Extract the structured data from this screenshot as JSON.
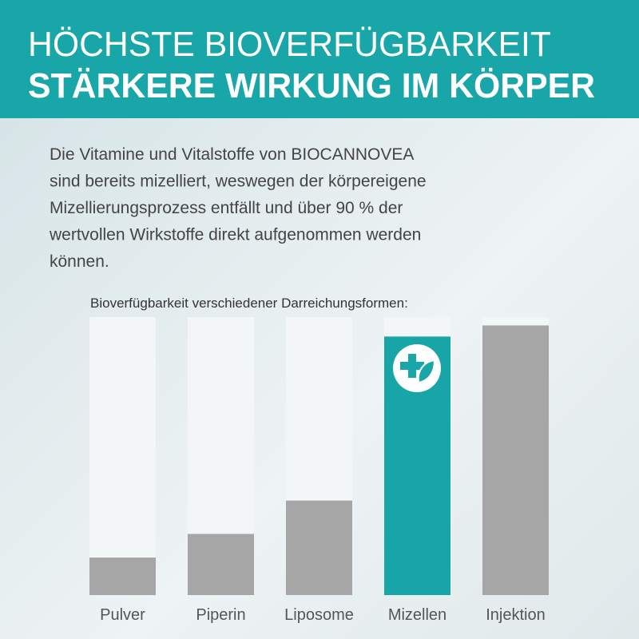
{
  "header": {
    "line1": "HÖCHSTE BIOVERFÜGBARKEIT",
    "line2": "STÄRKERE WIRKUNG IM KÖRPER"
  },
  "intro": [
    "Die Vitamine und Vitalstoffe von BIOCANNOVEA",
    "sind bereits mizelliert, weswegen der körpereigene",
    "Mizellierungsprozess entfällt und über 90 % der",
    "wertvollen Wirkstoffe direkt aufgenommen werden",
    "können."
  ],
  "chart_data": {
    "type": "bar",
    "title": "Bioverfügbarkeit verschiedener Darreichungsformen:",
    "categories": [
      "Pulver",
      "Piperin",
      "Liposome",
      "Mizellen",
      "Injektion"
    ],
    "values": [
      13.5,
      22,
      34,
      93,
      97
    ],
    "colors": [
      "#a6a6a6",
      "#a6a6a6",
      "#a6a6a6",
      "#17a5a8",
      "#a6a6a6"
    ],
    "track_color": "#f3f6f7",
    "ylim": [
      0,
      100
    ]
  }
}
